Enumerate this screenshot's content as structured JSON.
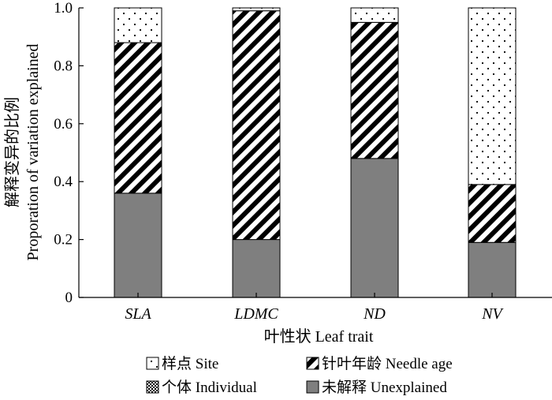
{
  "chart_data": {
    "type": "bar",
    "stacked": true,
    "categories": [
      "SLA",
      "LDMC",
      "ND",
      "NV"
    ],
    "series": [
      {
        "name": "未解释 Unexplained",
        "key": "unexplained",
        "pattern": "solid-gray",
        "color": "#7f7f7f",
        "values": [
          0.36,
          0.2,
          0.48,
          0.19
        ]
      },
      {
        "name": "个体 Individual",
        "key": "individual",
        "pattern": "checker",
        "color": "#000000",
        "values": [
          0.0,
          0.0,
          0.0,
          0.0
        ]
      },
      {
        "name": "针叶年龄 Needle age",
        "key": "needle_age",
        "pattern": "diagonal-hatch",
        "color": "#000000",
        "values": [
          0.52,
          0.79,
          0.47,
          0.2
        ]
      },
      {
        "name": "样点 Site",
        "key": "site",
        "pattern": "dots",
        "color": "#000000",
        "values": [
          0.12,
          0.01,
          0.05,
          0.61
        ]
      }
    ],
    "ylabel_line1": "解释变异的比例",
    "ylabel_line2": "Proporation of variation explained",
    "xlabel": "叶性状 Leaf trait",
    "ylim": [
      0,
      1.0
    ],
    "yticks": [
      "0",
      "0.2",
      "0.4",
      "0.6",
      "0.8",
      "1.0"
    ],
    "grid": false,
    "legend_position": "bottom"
  }
}
